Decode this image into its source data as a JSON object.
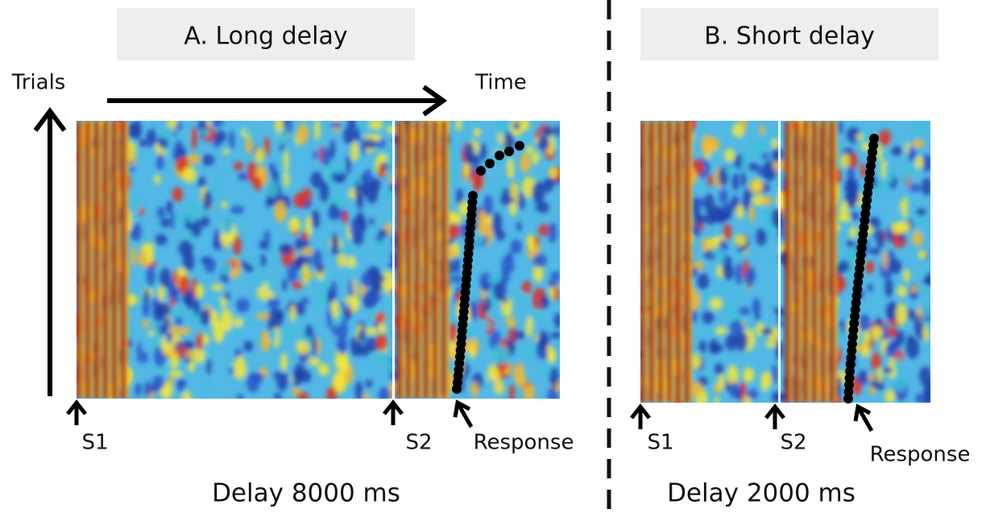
{
  "panels": [
    {
      "title": "A. Long delay",
      "y_label": "Trials",
      "x_label": "Time",
      "markers": [
        "S1",
        "S2",
        "Response"
      ],
      "caption": "Delay 8000 ms"
    },
    {
      "title": "B. Short delay",
      "markers": [
        "S1",
        "S2",
        "Response"
      ],
      "caption": "Delay 2000 ms"
    }
  ]
}
